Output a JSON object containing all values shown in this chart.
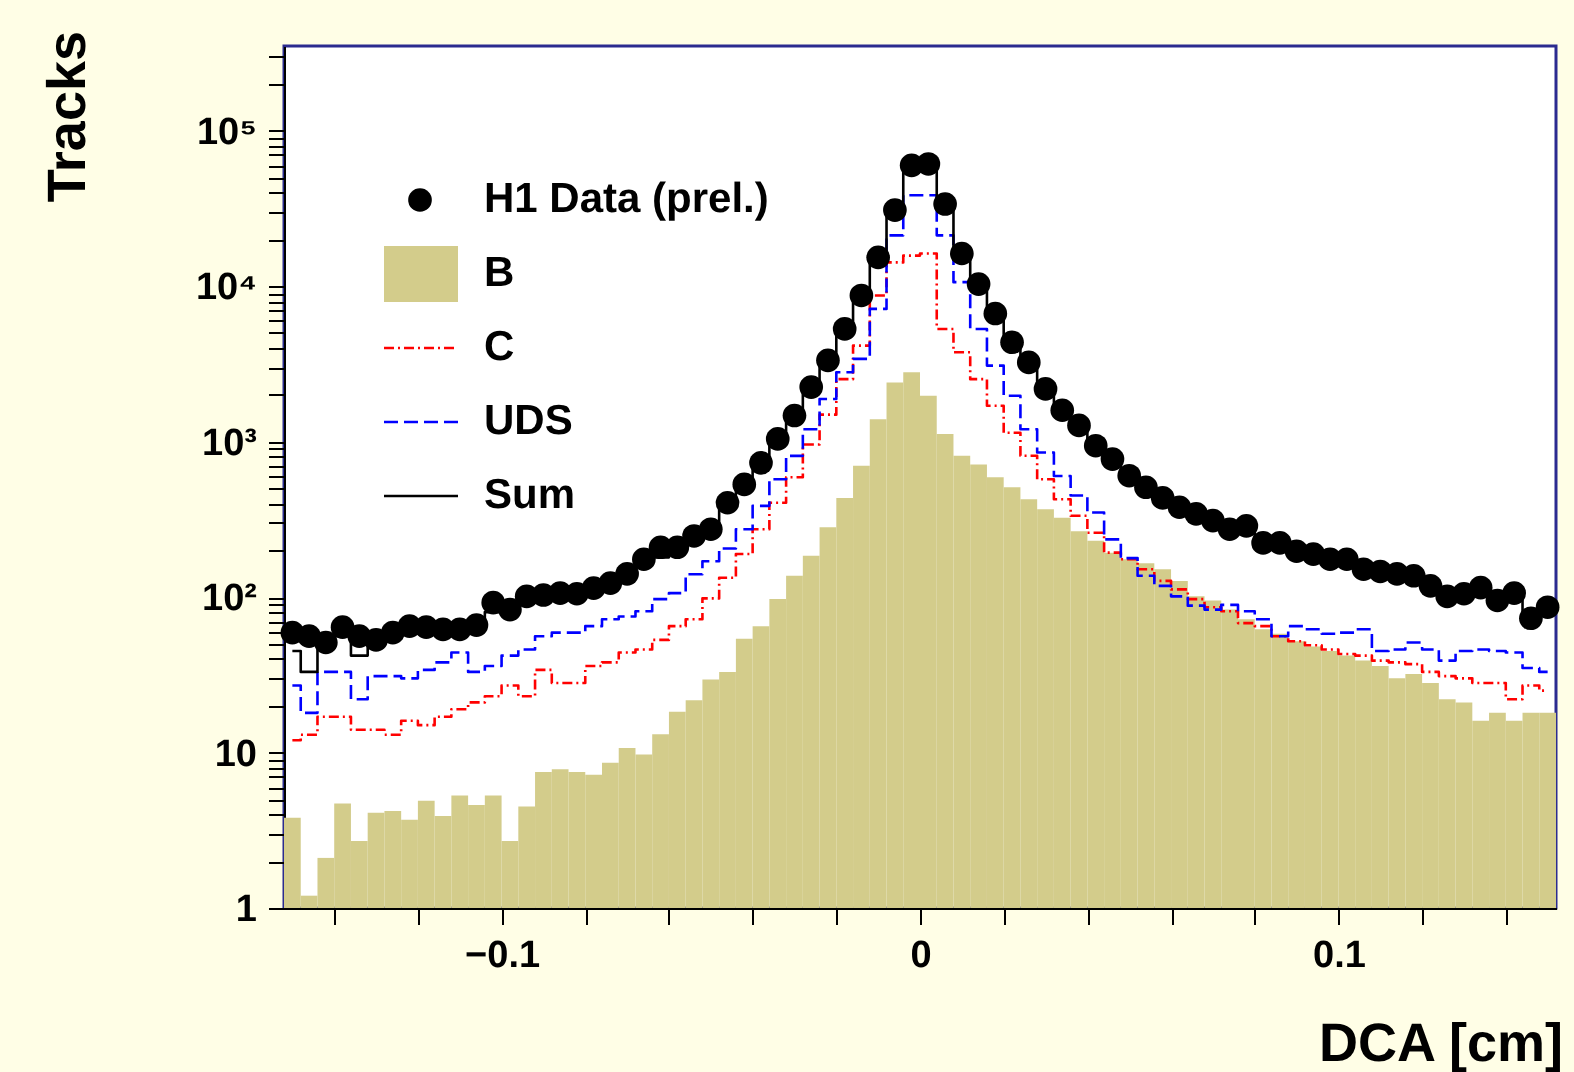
{
  "chart_data": {
    "type": "histogram",
    "xlabel": "DCA [cm]",
    "ylabel": "Tracks",
    "log": "y",
    "grid": false,
    "legend": "top left",
    "xlim": [
      -0.152,
      0.152
    ],
    "ylim": [
      1,
      350000
    ],
    "xticks": [
      {
        "value": -0.14,
        "label": null
      },
      {
        "value": -0.12,
        "label": null
      },
      {
        "value": -0.1,
        "label": "−0.1"
      },
      {
        "value": -0.08,
        "label": null
      },
      {
        "value": -0.06,
        "label": null
      },
      {
        "value": -0.04,
        "label": null
      },
      {
        "value": -0.02,
        "label": null
      },
      0,
      {
        "value": 0.02,
        "label": null
      },
      {
        "value": 0.04,
        "label": null
      },
      {
        "value": 0.06,
        "label": null
      },
      {
        "value": 0.08,
        "label": null
      },
      0.1,
      {
        "value": 0.12,
        "label": null
      },
      {
        "value": 0.14,
        "label": null
      }
    ],
    "yticks": [
      1,
      {
        "value": 2,
        "label": null
      },
      {
        "value": 3,
        "label": null
      },
      {
        "value": 4,
        "label": null
      },
      {
        "value": 5,
        "label": null
      },
      {
        "value": 6,
        "label": null
      },
      {
        "value": 7,
        "label": null
      },
      {
        "value": 8,
        "label": null
      },
      {
        "value": 9,
        "label": null
      },
      10,
      {
        "value": 20,
        "label": null
      },
      {
        "value": 30,
        "label": null
      },
      {
        "value": 40,
        "label": null
      },
      {
        "value": 50,
        "label": null
      },
      {
        "value": 60,
        "label": null
      },
      {
        "value": 70,
        "label": null
      },
      {
        "value": 80,
        "label": null
      },
      {
        "value": 90,
        "label": null
      },
      {
        "value": 100,
        "label": "10²"
      },
      {
        "value": 200,
        "label": null
      },
      {
        "value": 300,
        "label": null
      },
      {
        "value": 400,
        "label": null
      },
      {
        "value": 500,
        "label": null
      },
      {
        "value": 600,
        "label": null
      },
      {
        "value": 700,
        "label": null
      },
      {
        "value": 800,
        "label": null
      },
      {
        "value": 900,
        "label": null
      },
      {
        "value": 1000,
        "label": "10³"
      },
      {
        "value": 2000,
        "label": null
      },
      {
        "value": 3000,
        "label": null
      },
      {
        "value": 4000,
        "label": null
      },
      {
        "value": 5000,
        "label": null
      },
      {
        "value": 6000,
        "label": null
      },
      {
        "value": 7000,
        "label": null
      },
      {
        "value": 8000,
        "label": null
      },
      {
        "value": 9000,
        "label": null
      },
      {
        "value": 10000,
        "label": "10⁴"
      },
      {
        "value": 20000,
        "label": null
      },
      {
        "value": 30000,
        "label": null
      },
      {
        "value": 40000,
        "label": null
      },
      {
        "value": 50000,
        "label": null
      },
      {
        "value": 60000,
        "label": null
      },
      {
        "value": 70000,
        "label": null
      },
      {
        "value": 80000,
        "label": null
      },
      {
        "value": 90000,
        "label": null
      },
      {
        "value": 100000,
        "label": "10⁵"
      },
      {
        "value": 200000,
        "label": null
      },
      {
        "value": 300000,
        "label": null
      }
    ],
    "bins": [
      -0.152,
      -0.148,
      -0.144,
      -0.14,
      -0.136,
      -0.132,
      -0.128,
      -0.124,
      -0.12,
      -0.116,
      -0.112,
      -0.108,
      -0.104,
      -0.1,
      -0.096,
      -0.092,
      -0.088,
      -0.084,
      -0.08,
      -0.076,
      -0.072,
      -0.068,
      -0.064,
      -0.06,
      -0.056,
      -0.052,
      -0.048,
      -0.044,
      -0.04,
      -0.036,
      -0.032,
      -0.028,
      -0.024,
      -0.02,
      -0.016,
      -0.012,
      -0.008,
      -0.004,
      0,
      0.004,
      0.008,
      0.012,
      0.016,
      0.02,
      0.024,
      0.028,
      0.032,
      0.036,
      0.04,
      0.044,
      0.048,
      0.052,
      0.056,
      0.06,
      0.064,
      0.068,
      0.072,
      0.076,
      0.08,
      0.084,
      0.088,
      0.092,
      0.096,
      0.1,
      0.104,
      0.108,
      0.112,
      0.116,
      0.12,
      0.124,
      0.128,
      0.132,
      0.136,
      0.14,
      0.144,
      0.148,
      0.152
    ],
    "series": [
      {
        "name": "H1 Data (prel.)",
        "type": "scatter",
        "marker": "circle",
        "color": "#000000",
        "x": [
          -0.15,
          -0.146,
          -0.142,
          -0.138,
          -0.134,
          -0.13,
          -0.126,
          -0.122,
          -0.118,
          -0.114,
          -0.11,
          -0.106,
          -0.102,
          -0.098,
          -0.094,
          -0.09,
          -0.086,
          -0.082,
          -0.078,
          -0.074,
          -0.07,
          -0.066,
          -0.062,
          -0.058,
          -0.054,
          -0.05,
          -0.046,
          -0.042,
          -0.038,
          -0.034,
          -0.03,
          -0.026,
          -0.022,
          -0.018,
          -0.014,
          -0.01,
          -0.006,
          -0.002,
          0.002,
          0.006,
          0.01,
          0.014,
          0.018,
          0.022,
          0.026,
          0.03,
          0.034,
          0.038,
          0.042,
          0.046,
          0.05,
          0.054,
          0.058,
          0.062,
          0.066,
          0.07,
          0.074,
          0.078,
          0.082,
          0.086,
          0.09,
          0.094,
          0.098,
          0.102,
          0.106,
          0.11,
          0.114,
          0.118,
          0.122,
          0.126,
          0.13,
          0.134,
          0.138,
          0.142,
          0.146,
          0.15
        ],
        "values": [
          59,
          56,
          51,
          64,
          56,
          53,
          59,
          65,
          64,
          62,
          62,
          66,
          92,
          83,
          101,
          103,
          106,
          105,
          114,
          123,
          141,
          175,
          209,
          209,
          247,
          273,
          404,
          530,
          730,
          1040,
          1470,
          2240,
          3330,
          5300,
          8700,
          15300,
          30800,
          59800,
          61000,
          33700,
          16200,
          10300,
          6660,
          4350,
          3230,
          2180,
          1590,
          1270,
          940,
          771,
          603,
          508,
          434,
          378,
          343,
          310,
          273,
          287,
          223,
          223,
          197,
          189,
          175,
          175,
          151,
          146,
          141,
          137,
          118,
          101,
          105,
          115,
          95,
          106,
          73,
          86
        ]
      },
      {
        "name": "B",
        "color": "#d3cc8b",
        "values": [
          3.8,
          1.2,
          2.1,
          4.7,
          2.7,
          4.1,
          4.2,
          3.7,
          4.9,
          3.9,
          5.3,
          4.6,
          5.3,
          2.7,
          4.5,
          7.5,
          7.8,
          7.5,
          7.2,
          8.6,
          10.7,
          9.7,
          13.1,
          18.3,
          21.7,
          29.5,
          33,
          54,
          65,
          97,
          137,
          184,
          281,
          434,
          698,
          1390,
          2400,
          2790,
          1970,
          1120,
          809,
          711,
          590,
          508,
          426,
          367,
          323,
          265,
          230,
          193,
          175,
          165,
          151,
          127,
          101,
          95,
          83,
          72,
          62,
          58,
          52,
          48,
          45,
          42,
          39,
          36,
          30,
          32,
          28,
          22,
          21,
          16,
          18,
          16,
          18,
          18
        ]
      },
      {
        "name": "C",
        "type": "step",
        "line_style": "dotted",
        "color": "#ff0000",
        "x": [
          -0.15,
          -0.146,
          -0.142,
          -0.138,
          -0.134,
          -0.13,
          -0.126,
          -0.122,
          -0.118,
          -0.114,
          -0.11,
          -0.106,
          -0.102,
          -0.098,
          -0.094,
          -0.09,
          -0.086,
          -0.082,
          -0.078,
          -0.074,
          -0.07,
          -0.066,
          -0.062,
          -0.058,
          -0.054,
          -0.05,
          -0.046,
          -0.042,
          -0.038,
          -0.034,
          -0.03,
          -0.026,
          -0.022,
          -0.018,
          -0.014,
          -0.01,
          -0.006,
          -0.002,
          0.002,
          0.006,
          0.01,
          0.014,
          0.018,
          0.022,
          0.026,
          0.03,
          0.034,
          0.038,
          0.042,
          0.046,
          0.05,
          0.054,
          0.058,
          0.062,
          0.066,
          0.07,
          0.074,
          0.078,
          0.082,
          0.086,
          0.09,
          0.094,
          0.098,
          0.102,
          0.106,
          0.11,
          0.114,
          0.118,
          0.122,
          0.126,
          0.13,
          0.134,
          0.138,
          0.142,
          0.146,
          0.15
        ],
        "values": [
          12,
          13,
          17,
          17,
          14,
          14,
          13,
          16,
          15,
          17,
          19,
          21,
          23,
          27,
          23,
          34,
          28,
          28,
          36,
          38,
          44,
          46,
          53,
          65,
          72,
          98,
          133,
          189,
          273,
          404,
          590,
          957,
          1490,
          2520,
          4140,
          8690,
          14200,
          15700,
          16200,
          5300,
          3750,
          2520,
          1700,
          1140,
          810,
          572,
          426,
          333,
          259,
          193,
          175,
          151,
          127,
          112,
          97,
          86,
          81,
          68,
          65,
          56,
          52,
          49,
          46,
          43,
          42,
          39,
          38,
          37,
          33,
          31,
          30,
          28,
          28,
          22,
          27,
          25
        ]
      },
      {
        "name": "UDS",
        "type": "step",
        "line_style": "dashed",
        "color": "#0000ff",
        "x": [
          -0.15,
          -0.146,
          -0.142,
          -0.138,
          -0.134,
          -0.13,
          -0.126,
          -0.122,
          -0.118,
          -0.114,
          -0.11,
          -0.106,
          -0.102,
          -0.098,
          -0.094,
          -0.09,
          -0.086,
          -0.082,
          -0.078,
          -0.074,
          -0.07,
          -0.066,
          -0.062,
          -0.058,
          -0.054,
          -0.05,
          -0.046,
          -0.042,
          -0.038,
          -0.034,
          -0.03,
          -0.026,
          -0.022,
          -0.018,
          -0.014,
          -0.01,
          -0.006,
          -0.002,
          0.002,
          0.006,
          0.01,
          0.014,
          0.018,
          0.022,
          0.026,
          0.03,
          0.034,
          0.038,
          0.042,
          0.046,
          0.05,
          0.054,
          0.058,
          0.062,
          0.066,
          0.07,
          0.074,
          0.078,
          0.082,
          0.086,
          0.09,
          0.094,
          0.098,
          0.102,
          0.106,
          0.11,
          0.114,
          0.118,
          0.122,
          0.126,
          0.13,
          0.134,
          0.138,
          0.142,
          0.146,
          0.15
        ],
        "values": [
          27,
          18,
          33,
          33,
          22,
          31,
          31,
          30,
          34,
          38,
          44,
          33,
          36,
          42,
          46,
          56,
          59,
          59,
          65,
          72,
          75,
          81,
          97,
          106,
          140,
          170,
          205,
          273,
          386,
          572,
          809,
          1200,
          1880,
          2790,
          3400,
          7130,
          21200,
          38400,
          38400,
          21200,
          10600,
          5300,
          3080,
          1970,
          1200,
          850,
          600,
          450,
          350,
          235,
          178,
          137,
          118,
          101,
          88,
          83,
          89,
          81,
          72,
          56,
          65,
          62,
          58,
          59,
          62,
          45,
          46,
          51,
          46,
          39,
          45,
          46,
          45,
          44,
          35,
          33
        ]
      },
      {
        "name": "Sum",
        "type": "step",
        "line_style": "solid",
        "color": "#000000",
        "x": [
          -0.15,
          -0.146,
          -0.142,
          -0.138,
          -0.134,
          -0.13,
          -0.126,
          -0.122,
          -0.118,
          -0.114,
          -0.11,
          -0.106,
          -0.102,
          -0.098,
          -0.094,
          -0.09,
          -0.086,
          -0.082,
          -0.078,
          -0.074,
          -0.07,
          -0.066,
          -0.062,
          -0.058,
          -0.054,
          -0.05,
          -0.046,
          -0.042,
          -0.038,
          -0.034,
          -0.03,
          -0.026,
          -0.022,
          -0.018,
          -0.014,
          -0.01,
          -0.006,
          -0.002,
          0.002,
          0.006,
          0.01,
          0.014,
          0.018,
          0.022,
          0.026,
          0.03,
          0.034,
          0.038,
          0.042,
          0.046,
          0.05,
          0.054,
          0.058,
          0.062,
          0.066,
          0.07,
          0.074,
          0.078,
          0.082,
          0.086,
          0.09,
          0.094,
          0.098,
          0.102,
          0.106,
          0.11,
          0.114,
          0.118,
          0.122,
          0.126,
          0.13,
          0.134,
          0.138,
          0.142,
          0.146,
          0.15
        ],
        "values": [
          45,
          33,
          52,
          56,
          42,
          52,
          54,
          58,
          58,
          58,
          58,
          62,
          80,
          80,
          92,
          96,
          100,
          100,
          106,
          118,
          132,
          160,
          180,
          200,
          230,
          262,
          380,
          500,
          700,
          1000,
          1420,
          2200,
          3300,
          5200,
          8500,
          15000,
          30000,
          58000,
          59000,
          33000,
          16000,
          10000,
          6500,
          4300,
          3200,
          2150,
          1570,
          1250,
          930,
          760,
          600,
          500,
          430,
          375,
          340,
          305,
          275,
          280,
          225,
          220,
          195,
          188,
          175,
          172,
          152,
          145,
          140,
          135,
          120,
          103,
          104,
          112,
          96,
          103,
          78,
          84
        ]
      }
    ]
  }
}
